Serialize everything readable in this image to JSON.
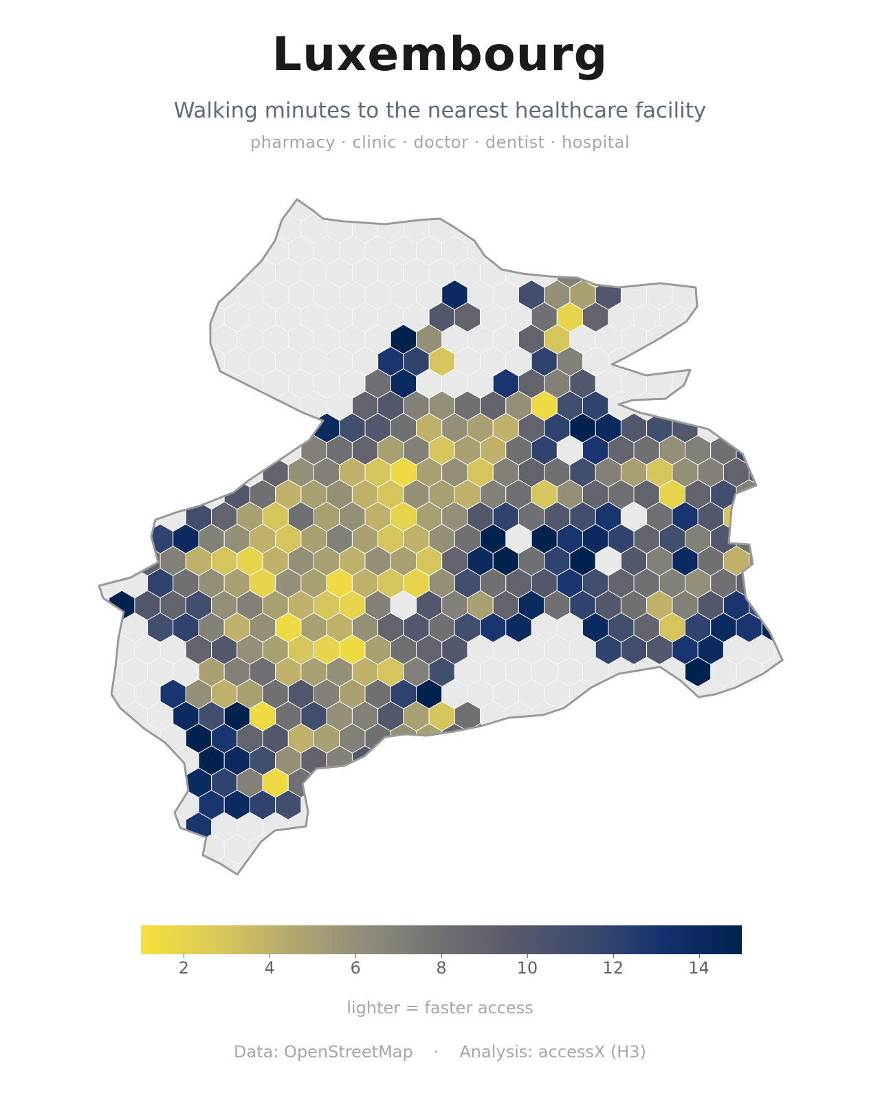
{
  "title": "Luxembourg",
  "subtitle": "Walking minutes to the nearest healthcare facility",
  "categories_line": "pharmacy · clinic · doctor · dentist · hospital",
  "colorbar": {
    "label": "lighter = faster access",
    "min": 1,
    "max": 15,
    "ticks": [
      "2",
      "4",
      "6",
      "8",
      "10",
      "12",
      "14"
    ],
    "tick_values": [
      2,
      4,
      6,
      8,
      10,
      12,
      14
    ],
    "colormap": "cividis_reversed",
    "colors": [
      "#f7e13b",
      "#dcc95a",
      "#b3a86f",
      "#8f8c7a",
      "#707072",
      "#57596a",
      "#3a4a6e",
      "#13306e",
      "#00224e"
    ]
  },
  "footer": {
    "data_source": "Data: OpenStreetMap",
    "separator": "·",
    "analysis": "Analysis: accessX (H3)"
  },
  "map": {
    "boundary_color": "#999999",
    "no_data_fill": "#e9e9e9",
    "hex_stroke": "#ffffff"
  },
  "chart_data": {
    "type": "heatmap",
    "title": "Luxembourg",
    "subtitle": "Walking minutes to the nearest healthcare facility",
    "legend_label": "lighter = faster access",
    "value_range": [
      1,
      15
    ],
    "cell_values_minutes": {
      "0": [
        null,
        null,
        null,
        null,
        null,
        null,
        null,
        null,
        null,
        null,
        null,
        null,
        null,
        null,
        null,
        null,
        null,
        null,
        null,
        null,
        null,
        null,
        null,
        null,
        null,
        null,
        null,
        null,
        null,
        null
      ],
      "3": [
        null,
        null,
        null,
        null,
        null,
        null,
        null,
        null,
        null,
        null,
        null,
        null,
        null,
        null,
        null,
        null,
        null,
        null,
        7,
        1.5,
        8,
        null,
        null,
        null,
        null,
        null,
        null,
        null,
        null,
        null
      ],
      "4": [
        null,
        null,
        null,
        null,
        null,
        null,
        null,
        null,
        null,
        null,
        null,
        null,
        null,
        null,
        14,
        null,
        null,
        11,
        6,
        5,
        10,
        null,
        null,
        null,
        null,
        null,
        null,
        null,
        null,
        null
      ],
      "5": [
        null,
        null,
        null,
        null,
        null,
        null,
        null,
        null,
        null,
        null,
        null,
        null,
        null,
        10,
        9,
        null,
        null,
        8,
        2,
        9,
        null,
        null,
        null,
        null,
        null,
        null,
        null,
        null,
        null,
        null
      ],
      "6": [
        null,
        null,
        null,
        null,
        null,
        null,
        null,
        null,
        null,
        null,
        null,
        null,
        15,
        6,
        null,
        null,
        null,
        9,
        3,
        null,
        null,
        null,
        null,
        null,
        null,
        null,
        null,
        null,
        null,
        null
      ],
      "7": [
        null,
        null,
        null,
        null,
        null,
        null,
        null,
        null,
        null,
        null,
        null,
        13,
        12,
        3,
        null,
        null,
        null,
        12,
        7,
        null,
        null,
        null,
        null,
        null,
        null,
        null,
        null,
        null,
        null,
        null
      ],
      "8": [
        null,
        null,
        null,
        null,
        null,
        null,
        null,
        null,
        null,
        null,
        null,
        8,
        14,
        null,
        null,
        null,
        13,
        9,
        7,
        10,
        null,
        null,
        null,
        null,
        null,
        null,
        null,
        null,
        null,
        null
      ],
      "9": [
        null,
        null,
        null,
        null,
        null,
        null,
        null,
        null,
        null,
        null,
        9,
        10,
        7,
        6,
        8,
        9,
        6,
        1.5,
        11,
        12,
        null,
        null,
        null,
        null,
        null,
        null,
        null,
        null,
        null,
        null
      ],
      "10": [
        null,
        null,
        null,
        null,
        null,
        null,
        null,
        null,
        null,
        14,
        11,
        10,
        8,
        4,
        6,
        5,
        4,
        9,
        12,
        15,
        14,
        10,
        11,
        10,
        null,
        null,
        null,
        null,
        null,
        null
      ],
      "11": [
        null,
        null,
        null,
        null,
        null,
        null,
        null,
        null,
        7,
        8,
        9,
        5,
        7,
        3,
        5,
        4,
        8,
        12,
        null,
        13,
        9,
        8,
        6,
        7,
        8,
        11,
        null,
        null,
        null,
        null
      ],
      "12": [
        null,
        null,
        null,
        null,
        null,
        null,
        null,
        9,
        6,
        7,
        4,
        3,
        1.5,
        5,
        6,
        3,
        7,
        9,
        8,
        11,
        7,
        5,
        3,
        6,
        7,
        9,
        10,
        null,
        null,
        null
      ],
      "13": [
        null,
        null,
        null,
        null,
        null,
        10,
        8,
        4,
        5,
        6,
        4,
        3,
        6,
        5,
        4,
        7,
        8,
        3,
        6,
        9,
        8,
        9,
        2,
        9,
        11,
        7,
        4,
        6,
        null,
        null
      ],
      "14": [
        null,
        null,
        null,
        null,
        11,
        9,
        5,
        3,
        8,
        5,
        6,
        4,
        2,
        5,
        6,
        10,
        12,
        8,
        10,
        11,
        13,
        null,
        8,
        13,
        10,
        3,
        5,
        6,
        null,
        null
      ],
      "15": [
        null,
        null,
        12,
        14,
        7,
        6,
        4,
        3,
        5,
        7,
        5,
        3,
        4,
        6,
        8,
        15,
        null,
        15,
        13,
        14,
        12,
        9,
        11,
        7,
        10,
        8,
        1.5,
        7,
        null,
        null
      ],
      "16": [
        null,
        null,
        9,
        7,
        4,
        3,
        2,
        4,
        6,
        5,
        4,
        6,
        5,
        3,
        9,
        14,
        15,
        8,
        12,
        15,
        null,
        10,
        7,
        14,
        8,
        4,
        6,
        8,
        null,
        null
      ],
      "17": [
        null,
        null,
        12,
        8,
        6,
        5,
        2,
        6,
        5,
        1.5,
        4,
        3,
        2,
        6,
        11,
        8,
        9,
        10,
        13,
        11,
        9,
        8,
        7,
        6,
        8,
        9,
        7,
        null,
        null,
        null
      ],
      "18": [
        null,
        15,
        10,
        9,
        11,
        6,
        7,
        5,
        4,
        3,
        2,
        7,
        null,
        10,
        7,
        5,
        9,
        14,
        8,
        12,
        10,
        8,
        4,
        7,
        10,
        13,
        11,
        null,
        null,
        null
      ],
      "19": [
        null,
        null,
        11,
        12,
        7,
        4,
        6,
        1.5,
        5,
        4,
        6,
        9,
        10,
        8,
        11,
        13,
        14,
        null,
        null,
        14,
        11,
        9,
        3,
        12,
        14,
        13,
        15,
        null,
        null,
        null
      ],
      "20": [
        null,
        null,
        null,
        null,
        9,
        10,
        6,
        5,
        3,
        2,
        1.5,
        5,
        8,
        9,
        10,
        null,
        null,
        null,
        null,
        null,
        12,
        11,
        10,
        13,
        14,
        null,
        null,
        null,
        null,
        null
      ],
      "21": [
        null,
        null,
        null,
        null,
        5,
        7,
        8,
        4,
        5,
        6,
        4,
        3,
        7,
        11,
        null,
        null,
        null,
        null,
        null,
        null,
        null,
        null,
        null,
        15,
        null,
        null,
        null,
        null,
        null,
        null
      ],
      "22": [
        null,
        null,
        null,
        13,
        6,
        4,
        5,
        8,
        10,
        7,
        5,
        8,
        12,
        15,
        null,
        null,
        null,
        null,
        null,
        null,
        null,
        null,
        null,
        null,
        null,
        null,
        null,
        null,
        null,
        null
      ],
      "23": [
        null,
        null,
        null,
        14,
        11,
        15,
        1.5,
        8,
        11,
        6,
        7,
        10,
        5,
        3,
        8,
        null,
        null,
        null,
        null,
        null,
        null,
        null,
        null,
        null,
        null,
        null,
        null,
        null,
        null,
        null
      ],
      "24": [
        null,
        null,
        null,
        null,
        15,
        13,
        9,
        10,
        4,
        5,
        7,
        8,
        6,
        5,
        9,
        12,
        14,
        null,
        null,
        null,
        null,
        null,
        null,
        null,
        null,
        null,
        null,
        null,
        null,
        null
      ],
      "25": [
        null,
        null,
        null,
        null,
        15,
        14,
        11,
        6,
        9,
        7,
        10,
        5,
        6,
        4,
        7,
        11,
        13,
        null,
        null,
        null,
        null,
        null,
        null,
        null,
        null,
        null,
        null,
        null,
        null,
        null
      ],
      "26": [
        null,
        null,
        null,
        null,
        14,
        12,
        7,
        1.5,
        8,
        10,
        11,
        null,
        4,
        6,
        9,
        12,
        null,
        null,
        null,
        null,
        null,
        null,
        null,
        null,
        null,
        null,
        null,
        null,
        null,
        null
      ],
      "27": [
        null,
        null,
        null,
        null,
        13,
        14,
        12,
        11,
        null,
        null,
        null,
        null,
        null,
        null,
        null,
        null,
        null,
        null,
        null,
        null,
        null,
        null,
        null,
        null,
        null,
        null,
        null,
        null,
        null,
        null
      ],
      "28": [
        null,
        null,
        null,
        null,
        13,
        null,
        null,
        null,
        null,
        null,
        null,
        null,
        null,
        null,
        null,
        null,
        null,
        null,
        null,
        null,
        null,
        null,
        null,
        null,
        null,
        null,
        null,
        null,
        null,
        null
      ]
    }
  }
}
